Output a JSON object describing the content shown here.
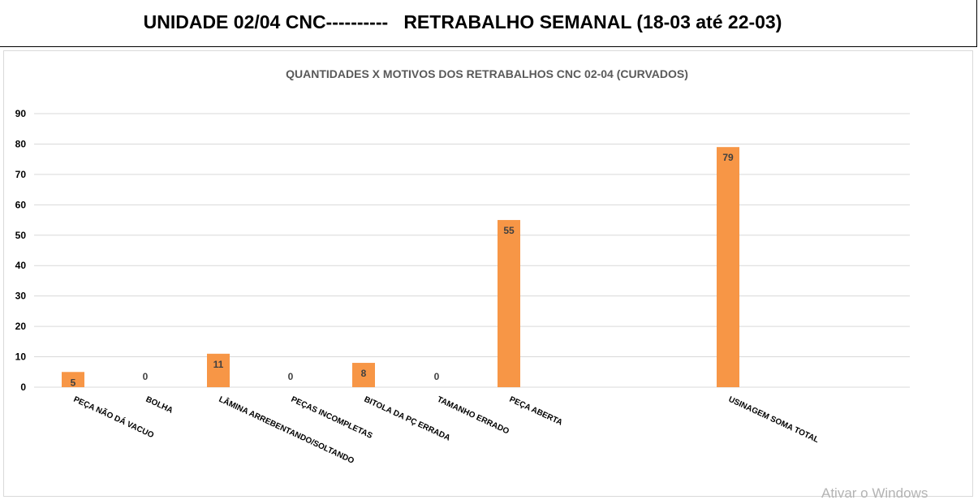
{
  "header": {
    "title": "UNIDADE 02/04 CNC----------   RETRABALHO SEMANAL (18-03 até 22-03)"
  },
  "chart_data": {
    "type": "bar",
    "title": "QUANTIDADES X MOTIVOS DOS RETRABALHOS CNC 02-04 (CURVADOS)",
    "xlabel": "",
    "ylabel": "",
    "ylim": [
      0,
      90
    ],
    "yticks": [
      0,
      10,
      20,
      30,
      40,
      50,
      60,
      70,
      80,
      90
    ],
    "grid": true,
    "legend": "none",
    "bar_color": "#f79646",
    "categories": [
      "PEÇA NÃO DÁ VACUO",
      "BOLHA",
      "LÂMINA ARREBENTANDO/SOLTANDO",
      "PEÇAS INCOMPLETAS",
      "BITOLA DA PÇ ERRADA",
      "TAMANHO ERRADO",
      "PEÇA ABERTA",
      "USINAGEM SOMA TOTAL"
    ],
    "values": [
      5,
      0,
      11,
      0,
      8,
      0,
      55,
      79
    ],
    "data_labels": [
      "5",
      "0",
      "11",
      "0",
      "8",
      "0",
      "55",
      "79"
    ]
  },
  "watermark": {
    "text": "Ativar o Windows"
  }
}
